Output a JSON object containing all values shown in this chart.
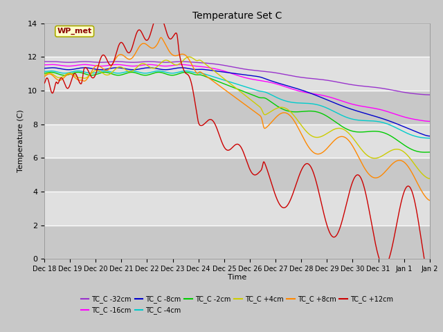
{
  "title": "Temperature Set C",
  "xlabel": "Time",
  "ylabel": "Temperature (C)",
  "ylim": [
    0,
    14
  ],
  "yticks": [
    0,
    2,
    4,
    6,
    8,
    10,
    12,
    14
  ],
  "series": [
    {
      "label": "TC_C -32cm",
      "color": "#9933cc"
    },
    {
      "label": "TC_C -16cm",
      "color": "#ff00ff"
    },
    {
      "label": "TC_C -8cm",
      "color": "#0000cc"
    },
    {
      "label": "TC_C -4cm",
      "color": "#00cccc"
    },
    {
      "label": "TC_C -2cm",
      "color": "#00cc00"
    },
    {
      "label": "TC_C +4cm",
      "color": "#cccc00"
    },
    {
      "label": "TC_C +8cm",
      "color": "#ff8800"
    },
    {
      "label": "TC_C +12cm",
      "color": "#cc0000"
    }
  ],
  "xtick_labels": [
    "Dec 18",
    "Dec 19",
    "Dec 20",
    "Dec 21",
    "Dec 22",
    "Dec 23",
    "Dec 24",
    "Dec 25",
    "Dec 26",
    "Dec 27",
    "Dec 28",
    "Dec 29",
    "Dec 30",
    "Dec 31",
    "Jan 1",
    "Jan 2"
  ],
  "annotation_text": "WP_met",
  "fig_bg": "#c8c8c8",
  "ax_bg": "#e0e0e0",
  "band_color": "#c8c8c8",
  "grid_color": "#ffffff"
}
